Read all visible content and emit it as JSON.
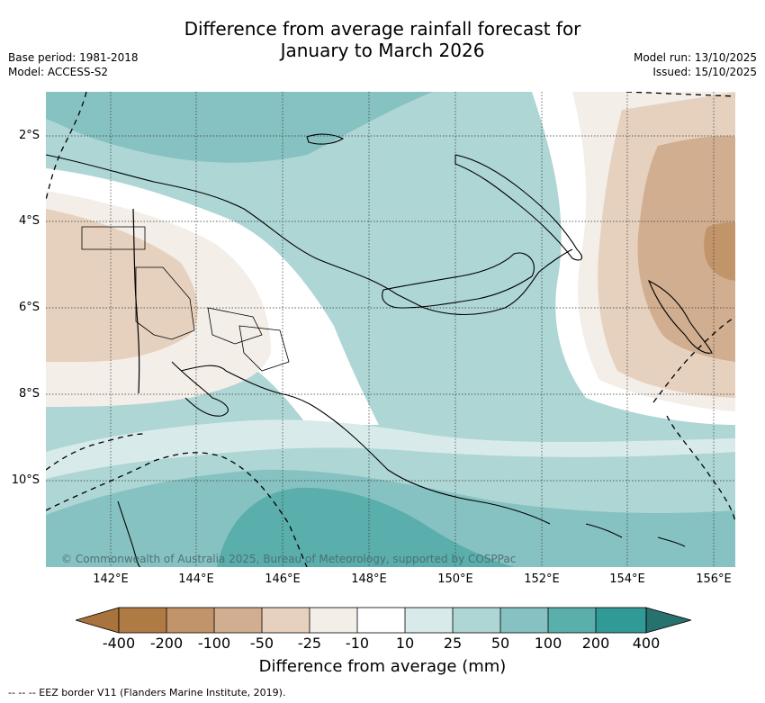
{
  "title": {
    "line1": "Difference from average rainfall forecast for",
    "line2": "January to March 2026"
  },
  "meta_left": {
    "base_period": "Base period: 1981-2018",
    "model": "Model: ACCESS-S2"
  },
  "meta_right": {
    "model_run": "Model run: 13/10/2025",
    "issued": "Issued: 15/10/2025"
  },
  "map": {
    "latitude_labels": [
      "2°S",
      "4°S",
      "6°S",
      "8°S",
      "10°S"
    ],
    "longitude_labels": [
      "142°E",
      "144°E",
      "146°E",
      "148°E",
      "150°E",
      "152°E",
      "154°E",
      "156°E"
    ],
    "copyright": "© Commonwealth of Australia 2025, Bureau of Meteorology, supported by COSPPac",
    "palette": {
      "dry3": "#c1946a",
      "dry2": "#d1ae8f",
      "dry1": "#e6d1be",
      "dry0": "#f3eee8",
      "neutral": "#ffffff",
      "wet1": "#d8ebea",
      "wet2": "#aed6d5",
      "wet3": "#86c2c1",
      "wet4": "#5aaeac"
    }
  },
  "colorbar": {
    "colors": [
      "#a8733c",
      "#b07a44",
      "#c1946a",
      "#d1ae8f",
      "#e6d1be",
      "#f3eee8",
      "#ffffff",
      "#d8ebea",
      "#aed6d5",
      "#86c2c1",
      "#5aaeac",
      "#319a97",
      "#27716e"
    ],
    "tick_labels": [
      "-400",
      "-200",
      "-100",
      "-50",
      "-25",
      "-10",
      "10",
      "25",
      "50",
      "100",
      "200",
      "400"
    ],
    "title": "Difference from average (mm)"
  },
  "footnote": "--  --  -- EEZ border V11 (Flanders Marine Institute, 2019)."
}
